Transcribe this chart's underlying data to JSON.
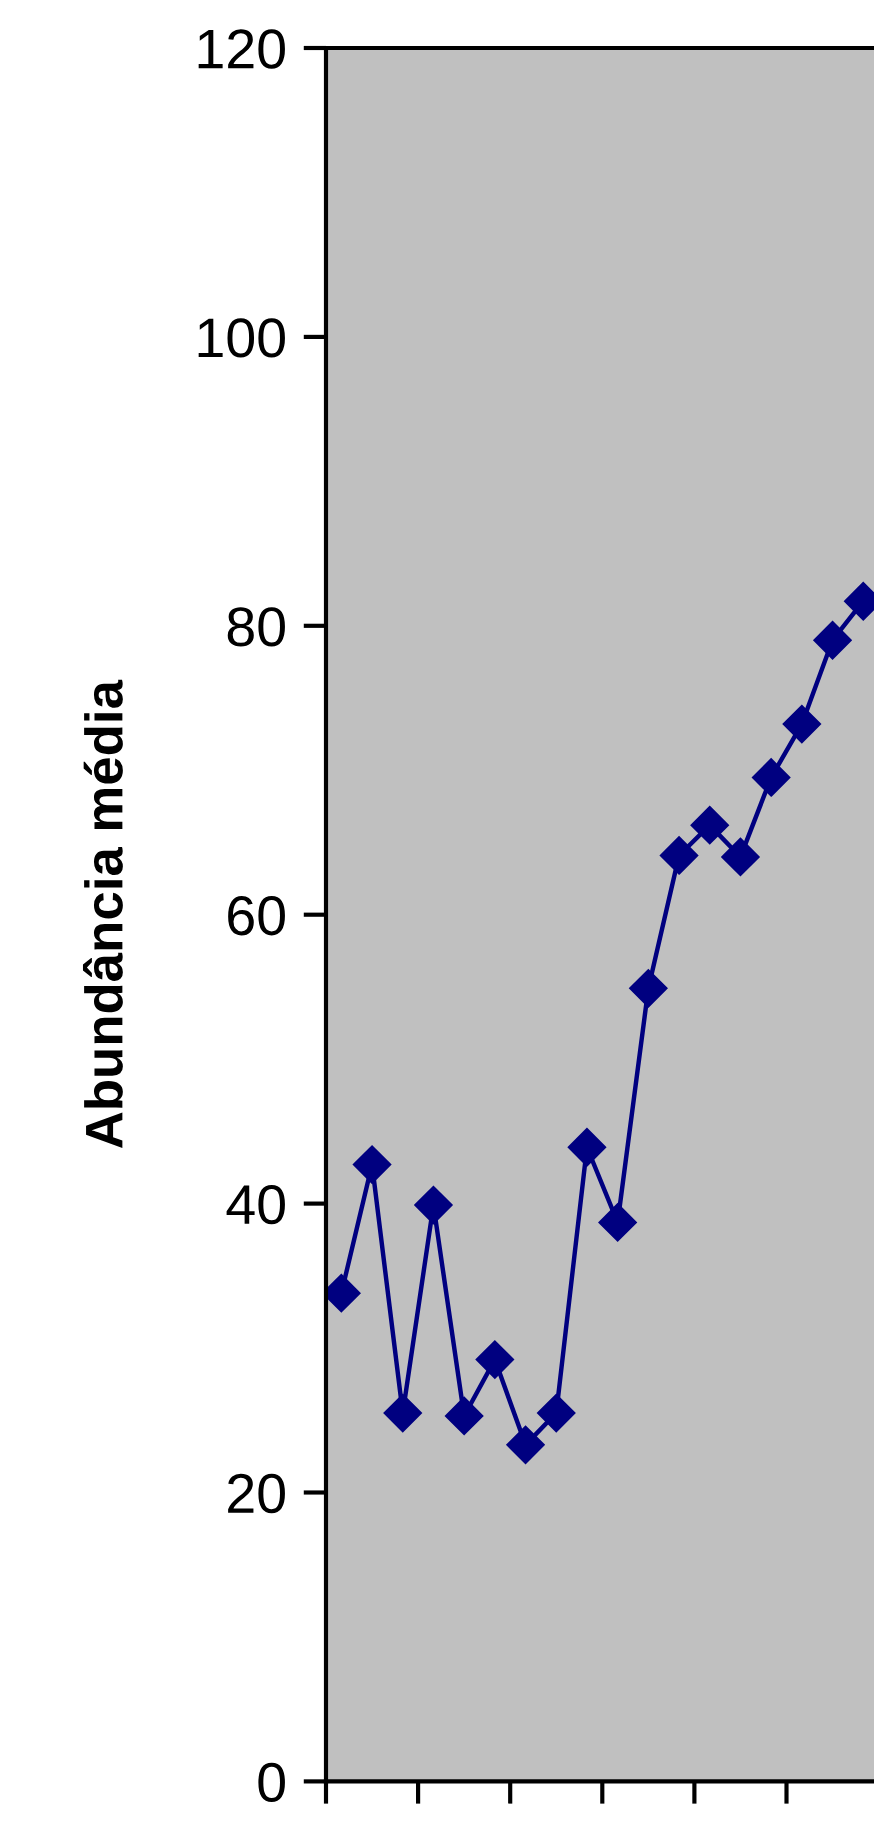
{
  "chart_data": {
    "type": "line",
    "ylabel": "Abundância média",
    "categories": [
      null,
      null,
      null,
      null,
      null,
      null,
      null,
      null,
      null,
      null,
      null,
      null,
      null,
      null,
      null,
      null,
      null,
      null
    ],
    "series": [
      {
        "color": "#000080",
        "values": [
          33.8,
          42.7,
          25.5,
          39.9,
          25.3,
          29.2,
          23.3,
          25.5,
          43.9,
          38.7,
          54.9,
          64.1,
          66.2,
          64.0,
          69.5,
          73.2,
          79.0,
          81.7
        ]
      }
    ],
    "ylim": [
      0,
      120
    ],
    "yticks": [
      0,
      20,
      40,
      60,
      80,
      100,
      120
    ],
    "marker": "diamond",
    "line_style": "solid",
    "grid": false,
    "legend": false
  }
}
